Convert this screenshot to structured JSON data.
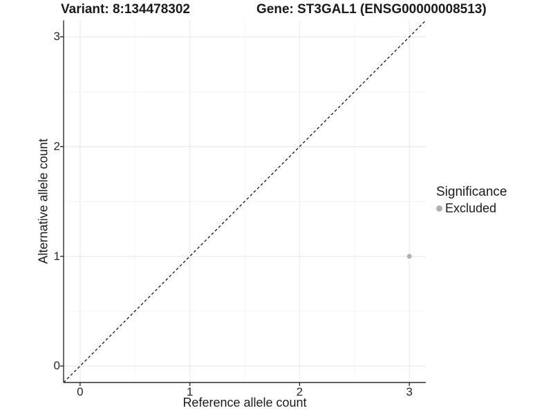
{
  "title": {
    "variant_label": "Variant: 8:134478302",
    "gene_label": "Gene: ST3GAL1 (ENSG00000008513)"
  },
  "chart_data": {
    "type": "scatter",
    "xlabel": "Reference allele count",
    "ylabel": "Alternative allele count",
    "xlim": [
      -0.15,
      3.15
    ],
    "ylim": [
      -0.15,
      3.15
    ],
    "x_ticks": [
      0,
      1,
      2,
      3
    ],
    "y_ticks": [
      0,
      1,
      2,
      3
    ],
    "x_minor_breaks": [
      0.5,
      1.5,
      2.5
    ],
    "y_minor_breaks": [
      0.5,
      1.5,
      2.5
    ],
    "grid": "on",
    "identity_line": {
      "style": "dashed",
      "from": [
        -0.15,
        -0.15
      ],
      "to": [
        3.15,
        3.15
      ]
    },
    "points": [
      {
        "x": 3,
        "y": 1,
        "significance": "Excluded"
      }
    ],
    "legend": {
      "title": "Significance",
      "position": "right",
      "items": [
        {
          "label": "Excluded",
          "color": "#b0b0b0"
        }
      ]
    }
  },
  "colors": {
    "background": "#ffffff",
    "grid_major": "#ebebeb",
    "grid_minor": "#f4f4f4",
    "axis_line": "#2b2b2b",
    "tick_mark": "#2b2b2b",
    "identity_line": "#000000",
    "point_excluded": "#b0b0b0"
  }
}
